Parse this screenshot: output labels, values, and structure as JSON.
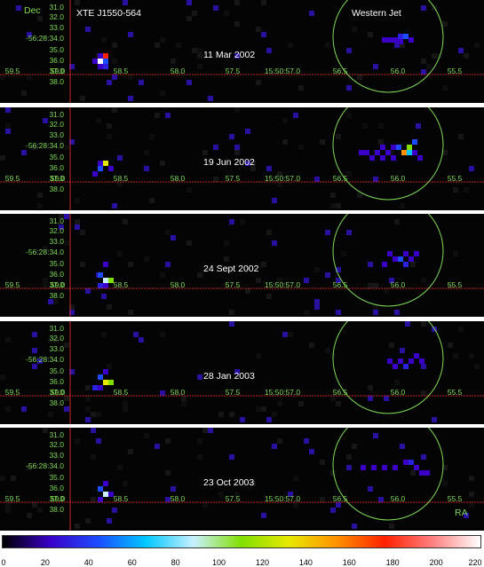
{
  "source_label": "XTE J1550-564",
  "jet_label": "Western Jet",
  "dec_axis_label": "Dec",
  "ra_axis_label": "RA",
  "dec_ticks": [
    "31.0",
    "32.0",
    "33.0",
    "-56:28:34.0",
    "35.0",
    "36.0",
    "37.0",
    "38.0"
  ],
  "ra_ticks": [
    "59.5",
    "59.0",
    "58.5",
    "58.0",
    "57.5",
    "15:50:57.0",
    "56.5",
    "56.0",
    "55.5"
  ],
  "panels": [
    {
      "date": "11 Mar 2002"
    },
    {
      "date": "19 Jun 2002"
    },
    {
      "date": "24 Sept 2002"
    },
    {
      "date": "28 Jan 2003"
    },
    {
      "date": "23 Oct 2003"
    }
  ],
  "colorbar": {
    "ticks": [
      "0",
      "20",
      "40",
      "60",
      "80",
      "100",
      "120",
      "140",
      "160",
      "180",
      "200",
      "220"
    ],
    "colors": [
      "#000000",
      "#3a00c8",
      "#1c4cff",
      "#00c8ff",
      "#c8f0ff",
      "#80e000",
      "#e8e800",
      "#ff9000",
      "#ff2000",
      "#ff8080",
      "#ffffff"
    ]
  },
  "colors": {
    "panel_bg": "#040404",
    "tick_text": "#7ed957",
    "crosshair": "#ff3030",
    "circle": "#7ed957"
  }
}
